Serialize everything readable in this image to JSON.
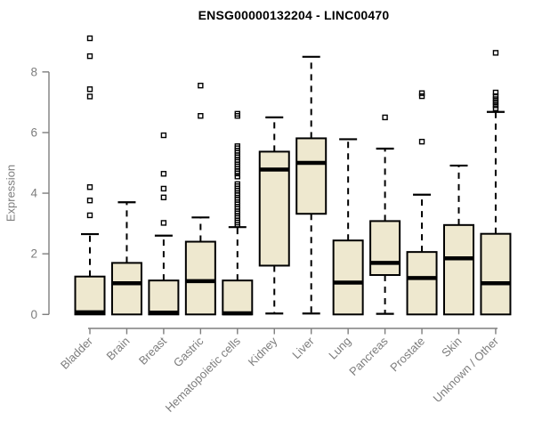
{
  "chart_data": {
    "type": "boxplot",
    "title": "ENSG00000132204 - LINC00470",
    "ylabel": "Expression",
    "xlabel": "",
    "yticks": [
      0,
      2,
      4,
      6,
      8
    ],
    "ylim": [
      -0.35,
      9.4
    ],
    "grid": false,
    "legend": "none",
    "categories": [
      "Bladder",
      "Brain",
      "Breast",
      "Gastric",
      "Hematopoietic cells",
      "Kidney",
      "Liver",
      "Lung",
      "Pancreas",
      "Prostate",
      "Skin",
      "Unknown / Other"
    ],
    "series": [
      {
        "name": "Bladder",
        "low": 0,
        "q1": 0,
        "median": 0.07,
        "q3": 1.25,
        "high": 2.65,
        "outliers": [
          3.27,
          3.76,
          4.2,
          7.19,
          7.43,
          8.52,
          9.11
        ]
      },
      {
        "name": "Brain",
        "low": 0,
        "q1": 0,
        "median": 1.03,
        "q3": 1.7,
        "high": 3.7,
        "outliers": []
      },
      {
        "name": "Breast",
        "low": 0,
        "q1": 0,
        "median": 0.06,
        "q3": 1.12,
        "high": 2.6,
        "outliers": [
          3.02,
          3.86,
          4.15,
          4.64,
          5.91
        ]
      },
      {
        "name": "Gastric",
        "low": 0,
        "q1": 0,
        "median": 1.1,
        "q3": 2.4,
        "high": 3.2,
        "outliers": [
          6.55,
          7.55
        ]
      },
      {
        "name": "Hematopoietic cells",
        "low": 0,
        "q1": 0,
        "median": 0.04,
        "q3": 1.12,
        "high": 2.88,
        "outliers": [
          2.95,
          3.03,
          3.1,
          3.18,
          3.25,
          3.33,
          3.4,
          3.48,
          3.55,
          3.63,
          3.7,
          3.78,
          3.85,
          3.93,
          4.0,
          4.08,
          4.15,
          4.23,
          4.3,
          4.55,
          4.65,
          4.72,
          4.8,
          4.88,
          4.95,
          5.03,
          5.1,
          5.18,
          5.25,
          5.33,
          5.4,
          5.48,
          5.55,
          6.55,
          6.62
        ]
      },
      {
        "name": "Kidney",
        "low": 0.03,
        "q1": 1.61,
        "median": 4.78,
        "q3": 5.37,
        "high": 6.5,
        "outliers": []
      },
      {
        "name": "Liver",
        "low": 0.03,
        "q1": 3.32,
        "median": 5.0,
        "q3": 5.81,
        "high": 8.5,
        "outliers": []
      },
      {
        "name": "Lung",
        "low": 0,
        "q1": 0,
        "median": 1.05,
        "q3": 2.44,
        "high": 5.78,
        "outliers": []
      },
      {
        "name": "Pancreas",
        "low": 0.02,
        "q1": 1.3,
        "median": 1.7,
        "q3": 3.08,
        "high": 5.47,
        "outliers": [
          6.5
        ]
      },
      {
        "name": "Prostate",
        "low": 0,
        "q1": 0,
        "median": 1.2,
        "q3": 2.06,
        "high": 3.95,
        "outliers": [
          5.7,
          7.2,
          7.3
        ]
      },
      {
        "name": "Skin",
        "low": 0,
        "q1": 0,
        "median": 1.85,
        "q3": 2.95,
        "high": 4.91,
        "outliers": []
      },
      {
        "name": "Unknown / Other",
        "low": 0,
        "q1": 0,
        "median": 1.03,
        "q3": 2.66,
        "high": 6.68,
        "outliers": [
          6.8,
          6.9,
          7.0,
          7.1,
          7.2,
          7.32,
          8.63
        ]
      }
    ],
    "colors": {
      "box_fill": "#EEE8CF",
      "box_border": "#000000",
      "median": "#000000",
      "whisker": "#000000",
      "axis": "#7e7e7e",
      "tick_text": "#7d7d7d",
      "title_text": "#000000",
      "background": "#ffffff"
    }
  }
}
